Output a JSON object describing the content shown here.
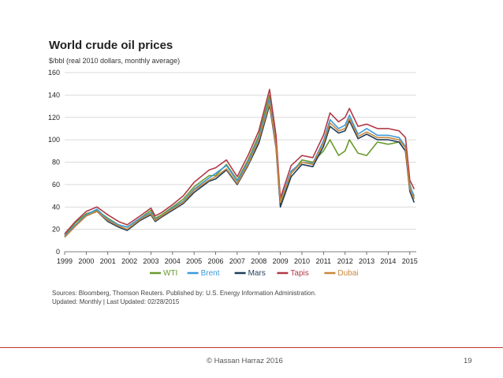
{
  "chart_data": {
    "type": "line",
    "title": "World crude oil prices",
    "subtitle": "$/bbl (real 2010 dollars, monthly average)",
    "xlabel": "",
    "ylabel": "",
    "x": [
      1999.0,
      1999.5,
      2000.0,
      2000.5,
      2001.0,
      2001.5,
      2001.9,
      2002.5,
      2003.0,
      2003.2,
      2003.5,
      2004.0,
      2004.5,
      2005.0,
      2005.7,
      2006.0,
      2006.5,
      2007.0,
      2007.5,
      2008.0,
      2008.5,
      2008.8,
      2009.0,
      2009.5,
      2010.0,
      2010.5,
      2011.0,
      2011.3,
      2011.7,
      2012.0,
      2012.2,
      2012.6,
      2013.0,
      2013.5,
      2014.0,
      2014.5,
      2014.8,
      2015.0,
      2015.2
    ],
    "xlim": [
      1999,
      2015.3
    ],
    "xticks": [
      "1999",
      "2000",
      "2001",
      "2002",
      "2003",
      "2004",
      "2005",
      "2006",
      "2007",
      "2008",
      "2009",
      "2010",
      "2011",
      "2012",
      "2013",
      "2014",
      "2015"
    ],
    "ylim": [
      0,
      160
    ],
    "yticks": [
      "0",
      "20",
      "40",
      "60",
      "80",
      "100",
      "120",
      "140",
      "160"
    ],
    "grid": true,
    "legend": "bottom",
    "series": [
      {
        "name": "WTI",
        "color": "#6a9a2e",
        "values": [
          15,
          26,
          34,
          37,
          30,
          24,
          22,
          30,
          37,
          30,
          33,
          40,
          47,
          58,
          68,
          68,
          78,
          64,
          82,
          104,
          140,
          100,
          42,
          70,
          82,
          80,
          90,
          100,
          86,
          90,
          100,
          88,
          86,
          98,
          96,
          98,
          90,
          60,
          48
        ]
      },
      {
        "name": "Brent",
        "color": "#3a9ad9",
        "values": [
          14,
          24,
          33,
          38,
          29,
          24,
          22,
          30,
          35,
          29,
          32,
          39,
          45,
          56,
          66,
          70,
          77,
          63,
          80,
          102,
          136,
          98,
          45,
          72,
          80,
          79,
          99,
          118,
          110,
          113,
          122,
          105,
          110,
          104,
          104,
          102,
          94,
          58,
          50
        ]
      },
      {
        "name": "Mars",
        "color": "#1f3d5b",
        "values": [
          13,
          23,
          32,
          36,
          27,
          22,
          19,
          28,
          33,
          27,
          31,
          37,
          43,
          53,
          63,
          65,
          73,
          60,
          77,
          97,
          131,
          93,
          40,
          67,
          78,
          76,
          94,
          112,
          106,
          108,
          117,
          101,
          105,
          100,
          100,
          98,
          90,
          54,
          44
        ]
      },
      {
        "name": "Tapis",
        "color": "#b03a48",
        "values": [
          16,
          27,
          36,
          40,
          33,
          27,
          24,
          32,
          39,
          32,
          35,
          42,
          50,
          62,
          73,
          75,
          82,
          67,
          86,
          108,
          145,
          104,
          48,
          77,
          86,
          84,
          104,
          124,
          116,
          120,
          128,
          112,
          114,
          110,
          110,
          108,
          102,
          64,
          56
        ]
      },
      {
        "name": "Dubai",
        "color": "#c8873a",
        "values": [
          13,
          23,
          32,
          36,
          28,
          23,
          20,
          29,
          34,
          28,
          32,
          38,
          44,
          55,
          64,
          67,
          74,
          61,
          78,
          100,
          133,
          95,
          44,
          70,
          80,
          78,
          97,
          115,
          108,
          110,
          119,
          103,
          107,
          102,
          102,
          100,
          93,
          56,
          47
        ]
      }
    ],
    "source": "Sources: Bloomberg, Thomson Reuters. Published by: U.S. Energy Information Administration.",
    "updated": "Updated: Monthly | Last Updated: 02/28/2015"
  },
  "footer": {
    "copyright": "©  Hassan Harraz  2016",
    "page_number": "19"
  }
}
